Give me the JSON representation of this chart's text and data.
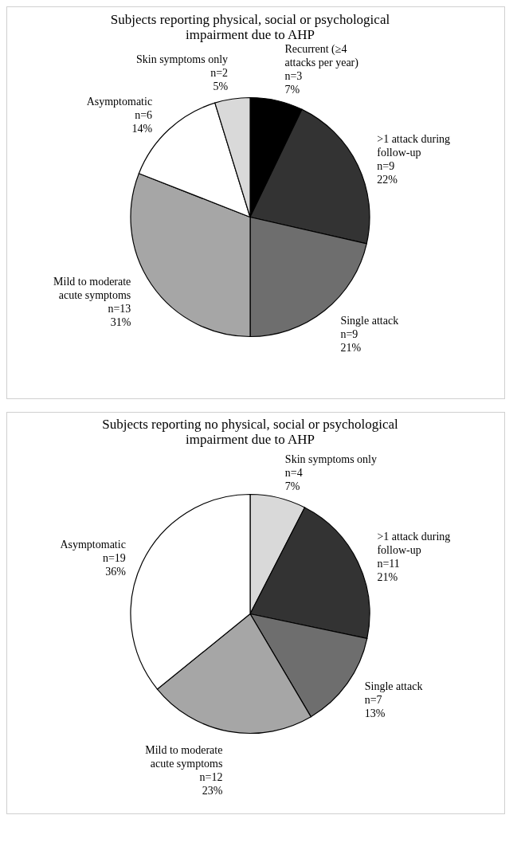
{
  "chart_data": [
    {
      "type": "pie",
      "title": "Subjects reporting physical, social or psychological impairment due to AHP",
      "categories": [
        "Recurrent (≥4 attacks per year)",
        ">1 attack during follow-up",
        "Single attack",
        "Mild to moderate acute symptoms",
        "Asymptomatic",
        "Skin symptoms only"
      ],
      "values": [
        3,
        9,
        9,
        13,
        6,
        2
      ],
      "value_labels": [
        "n=3\n7%",
        "n=9\n22%",
        "n=9\n21%",
        "n=13\n31%",
        "n=6\n14%",
        "n=2\n5%"
      ],
      "colors": [
        "#000000",
        "#333333",
        "#6e6e6e",
        "#a6a6a6",
        "#ffffff",
        "#d9d9d9"
      ],
      "legend": false
    },
    {
      "type": "pie",
      "title": "Subjects reporting no physical, social or psychological impairment due to AHP",
      "categories": [
        "Skin symptoms only",
        ">1 attack during follow-up",
        "Single attack",
        "Mild to moderate acute symptoms",
        "Asymptomatic"
      ],
      "values": [
        4,
        11,
        7,
        12,
        19
      ],
      "value_labels": [
        "n=4\n7%",
        "n=11\n21%",
        "n=7\n13%",
        "n=12\n23%",
        "n=19\n36%"
      ],
      "colors": [
        "#d9d9d9",
        "#333333",
        "#6e6e6e",
        "#a6a6a6",
        "#ffffff"
      ],
      "legend": false
    }
  ]
}
